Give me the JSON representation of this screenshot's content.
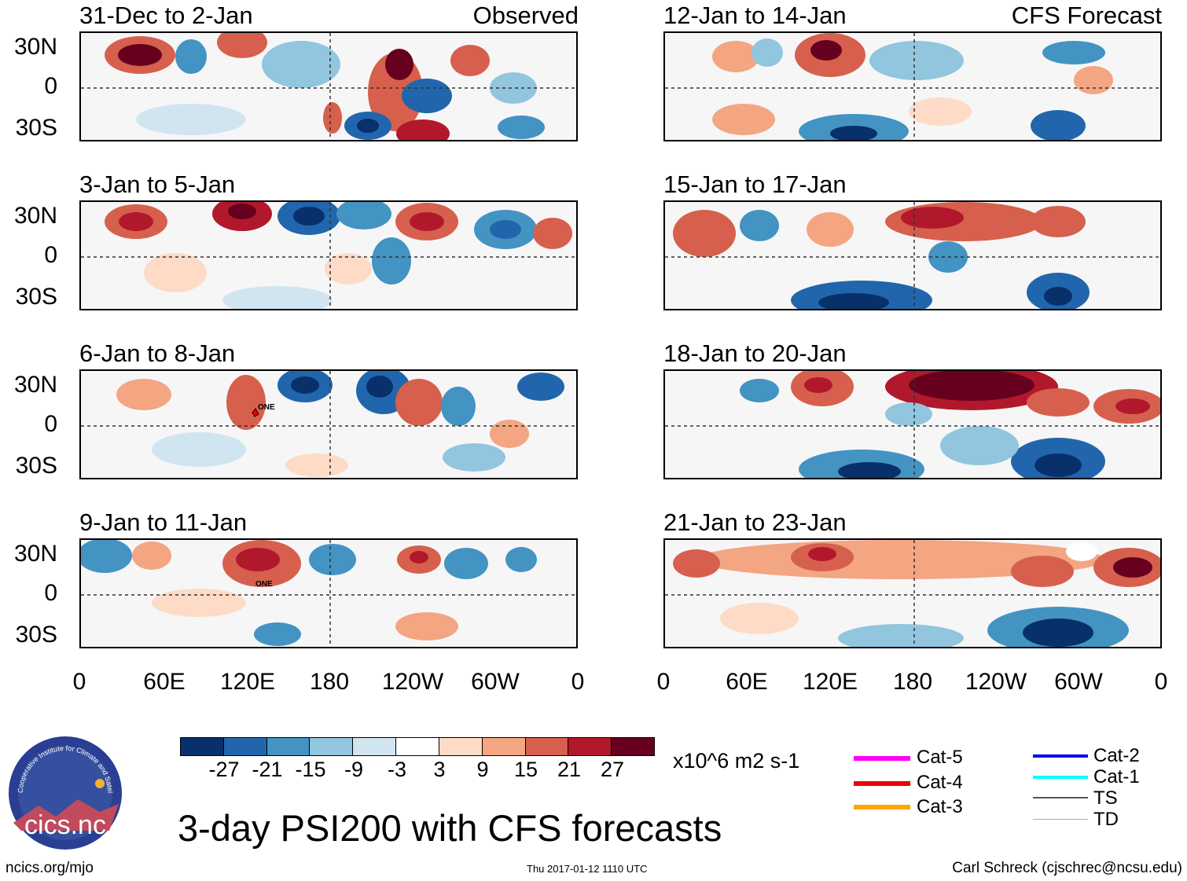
{
  "left_column": {
    "label": "Observed",
    "panels": [
      {
        "title": "31-Dec to 2-Jan"
      },
      {
        "title": "3-Jan to 5-Jan"
      },
      {
        "title": "6-Jan to 8-Jan",
        "storm_label": "ONE"
      },
      {
        "title": "9-Jan to 11-Jan",
        "storm_label": "ONE"
      }
    ]
  },
  "right_column": {
    "label": "CFS Forecast",
    "panels": [
      {
        "title": "12-Jan to 14-Jan"
      },
      {
        "title": "15-Jan to 17-Jan"
      },
      {
        "title": "18-Jan to 20-Jan"
      },
      {
        "title": "21-Jan to 23-Jan"
      }
    ]
  },
  "y_axis": [
    "30N",
    "0",
    "30S"
  ],
  "x_axis": [
    "0",
    "60E",
    "120E",
    "180",
    "120W",
    "60W",
    "0"
  ],
  "colorbar": {
    "ticks": [
      "-27",
      "-21",
      "-15",
      "-9",
      "-3",
      "3",
      "9",
      "15",
      "21",
      "27"
    ],
    "colors": [
      "#08306b",
      "#2166ac",
      "#4393c3",
      "#92c5de",
      "#d1e5f0",
      "#ffffff",
      "#fddbc7",
      "#f4a582",
      "#d6604d",
      "#b2182b",
      "#67001f"
    ],
    "units": "x10^6 m2 s-1"
  },
  "legend": {
    "items": [
      {
        "label": "Cat-5",
        "color": "#ff00ff"
      },
      {
        "label": "Cat-4",
        "color": "#ee0000"
      },
      {
        "label": "Cat-3",
        "color": "#ffa500"
      },
      {
        "label": "Cat-2",
        "color": "#0000ee"
      },
      {
        "label": "Cat-1",
        "color": "#00ffff"
      },
      {
        "label": "TS",
        "color": "#555555"
      },
      {
        "label": "TD",
        "color": "#aaaaaa"
      }
    ]
  },
  "logo": {
    "text": "cics.nc",
    "ring_text": "Cooperative Institute for Climate and Satellites"
  },
  "main_title": "3-day PSI200 with CFS forecasts",
  "footer": {
    "left": "ncics.org/mjo",
    "center": "Thu 2017-01-12 1110 UTC",
    "right": "Carl Schreck (cjschrec@ncsu.edu)"
  }
}
